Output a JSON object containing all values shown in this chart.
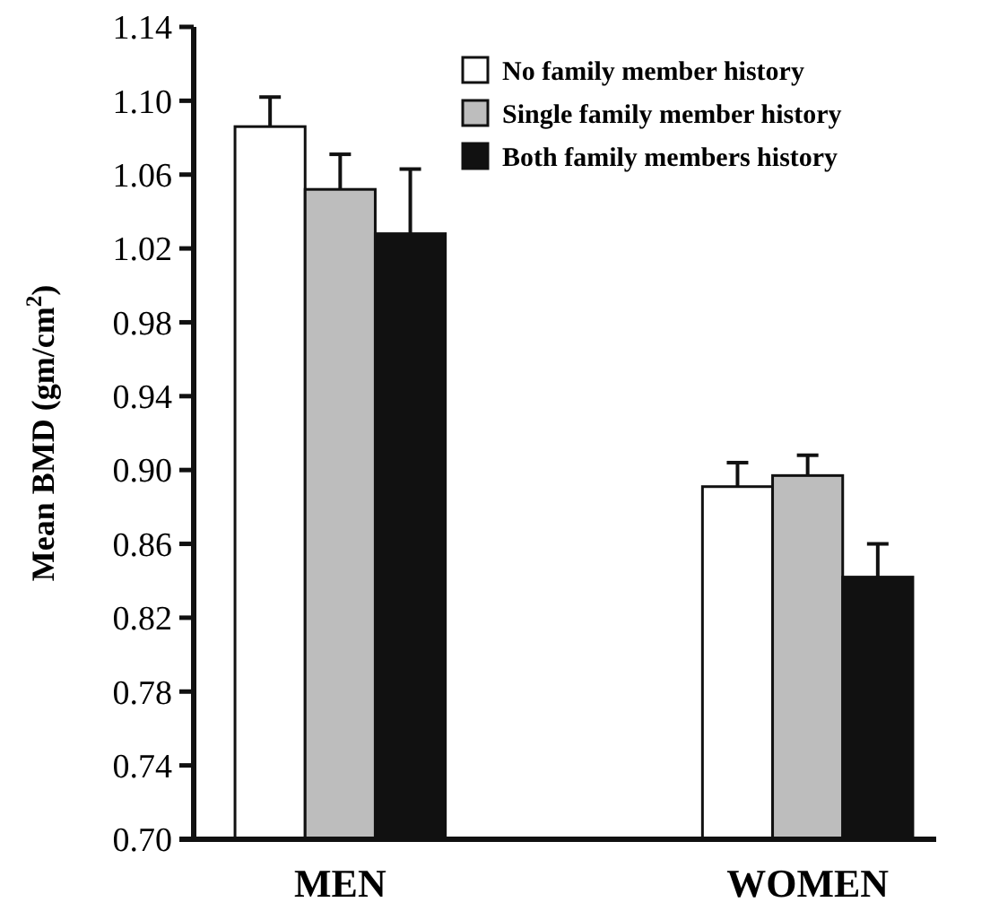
{
  "chart_data": {
    "type": "bar",
    "ylabel": "Mean BMD (gm/cm$^{2}$)",
    "categories": [
      "MEN",
      "WOMEN"
    ],
    "series": [
      {
        "name": "No family member history",
        "color": "#ffffff",
        "values": [
          1.086,
          0.891
        ],
        "errors": [
          [
            1.086,
            1.102
          ],
          [
            0.891,
            0.904
          ]
        ]
      },
      {
        "name": "Single family member history",
        "color": "#bdbdbd",
        "values": [
          1.052,
          0.897
        ],
        "errors": [
          [
            1.052,
            1.071
          ],
          [
            0.897,
            0.908
          ]
        ]
      },
      {
        "name": "Both family members history",
        "color": "#111111",
        "values": [
          1.028,
          0.842
        ],
        "errors": [
          [
            1.028,
            1.063
          ],
          [
            0.842,
            0.86
          ]
        ]
      }
    ],
    "ylim": [
      0.7,
      1.14
    ],
    "yticks": [
      {
        "value": 0.7,
        "label": "0.70"
      },
      {
        "value": 0.74,
        "label": "0.74"
      },
      {
        "value": 0.78,
        "label": "0.78"
      },
      {
        "value": 0.82,
        "label": "0.82"
      },
      {
        "value": 0.86,
        "label": "0.86"
      },
      {
        "value": 0.9,
        "label": "0.90"
      },
      {
        "value": 0.94,
        "label": "0.94"
      },
      {
        "value": 0.98,
        "label": "0.98"
      },
      {
        "value": 1.02,
        "label": "1.02"
      },
      {
        "value": 1.06,
        "label": "1.06"
      },
      {
        "value": 1.1,
        "label": "1.10"
      },
      {
        "value": 1.14,
        "label": "1.14"
      }
    ],
    "legend": "top right",
    "grid": false
  }
}
